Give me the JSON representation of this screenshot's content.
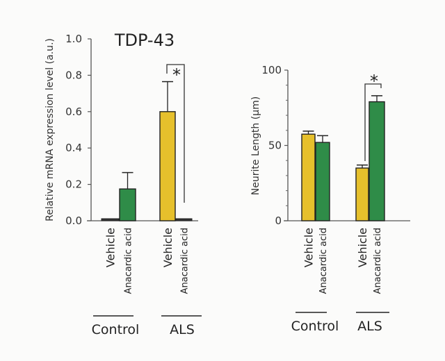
{
  "chart_data": [
    {
      "type": "bar",
      "title": "TDP-43",
      "xlabel": "",
      "ylabel": "Relative mRNA expression level (a.u.)",
      "ylim": [
        0,
        1.0
      ],
      "yticks": [
        0.0,
        0.2,
        0.4,
        0.6,
        0.8,
        1.0
      ],
      "ytick_labels": [
        "0.0",
        "0.2",
        "0.4",
        "0.6",
        "0.8",
        "1.0"
      ],
      "grid": false,
      "groups": [
        "Control",
        "ALS"
      ],
      "categories": [
        "Vehicle",
        "Anacardic acid"
      ],
      "series": [
        {
          "name": "Vehicle",
          "color": "#e6c02c",
          "values": [
            0.01,
            0.6
          ],
          "errors": [
            0.0,
            0.165
          ]
        },
        {
          "name": "Anacardic acid",
          "color": "#2f8c48",
          "values": [
            0.175,
            0.01
          ],
          "errors": [
            0.09,
            0.0
          ]
        }
      ],
      "annotations": [
        {
          "text": "*",
          "between": [
            "ALS Vehicle",
            "ALS Anacardic acid"
          ]
        }
      ]
    },
    {
      "type": "bar",
      "title": "",
      "xlabel": "",
      "ylabel": "Neurite Length (μm)",
      "ylim": [
        0,
        100
      ],
      "yticks": [
        0,
        50,
        100
      ],
      "ytick_labels": [
        "0",
        "50",
        "100"
      ],
      "minor_tick_step": 10,
      "grid": false,
      "groups": [
        "Control",
        "ALS"
      ],
      "categories": [
        "Vehicle",
        "Anacardic acid"
      ],
      "series": [
        {
          "name": "Vehicle",
          "color": "#e6c02c",
          "values": [
            57.5,
            35
          ],
          "errors": [
            2,
            2
          ]
        },
        {
          "name": "Anacardic acid",
          "color": "#2f8c48",
          "values": [
            52,
            79
          ],
          "errors": [
            4.5,
            4
          ]
        }
      ],
      "annotations": [
        {
          "text": "*",
          "between": [
            "ALS Vehicle",
            "ALS Anacardic acid"
          ]
        }
      ]
    }
  ],
  "labels": {
    "vehicle": "Vehicle",
    "anacardic": "Anacardic acid",
    "control": "Control",
    "als": "ALS",
    "star": "*"
  }
}
